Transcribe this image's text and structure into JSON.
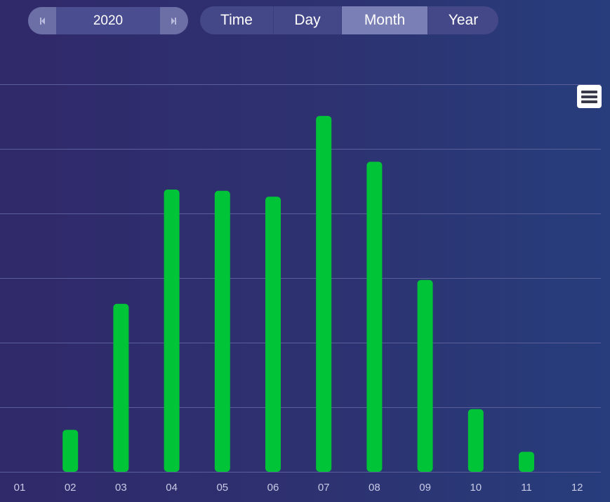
{
  "year_nav": {
    "year": "2020",
    "prev_icon": "skip-back-icon",
    "next_icon": "skip-forward-icon"
  },
  "tabs": [
    {
      "label": "Time",
      "active": false
    },
    {
      "label": "Day",
      "active": false
    },
    {
      "label": "Month",
      "active": true
    },
    {
      "label": "Year",
      "active": false
    }
  ],
  "menu": {
    "icon": "hamburger-menu-icon"
  },
  "colors": {
    "bar": "#00c437",
    "grid": "#5a5f99",
    "active_tab": "#7a7fb6"
  },
  "chart_data": {
    "type": "bar",
    "title": "",
    "xlabel": "",
    "ylabel": "",
    "grid": true,
    "categories": [
      "01",
      "02",
      "03",
      "04",
      "05",
      "06",
      "07",
      "08",
      "09",
      "10",
      "11",
      "12"
    ],
    "values": [
      0,
      0.65,
      2.6,
      4.37,
      4.35,
      4.26,
      5.51,
      4.8,
      2.97,
      0.97,
      0.31,
      0
    ],
    "ylim": [
      0,
      6
    ]
  }
}
